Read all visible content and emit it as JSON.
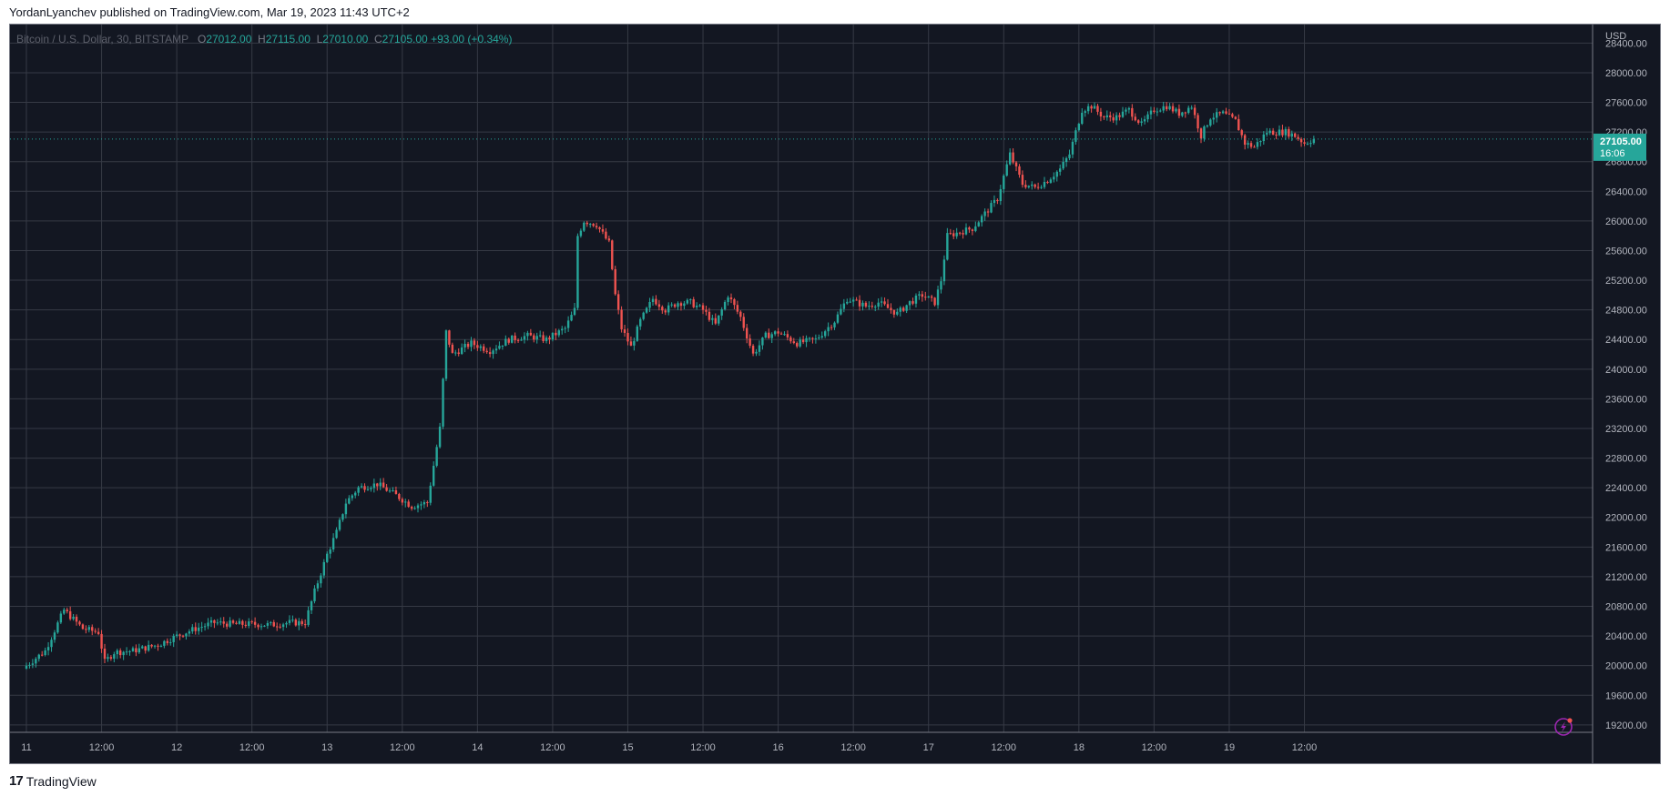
{
  "header": {
    "publisher_line": "YordanLyanchev published on TradingView.com, Mar 19, 2023 11:43 UTC+2"
  },
  "footer": {
    "brand": "TradingView",
    "logo_icon": "tradingview-logo-icon"
  },
  "colors": {
    "up": "#26a69a",
    "down": "#ef5350",
    "background": "#131722",
    "grid": "#363a45",
    "axis_text": "#b2b5be"
  },
  "chart_data": {
    "type": "candlestick",
    "symbol": "Bitcoin / U.S. Dollar, 30, BITSTAMP",
    "ohlc": {
      "o": "27012.00",
      "h": "27115.00",
      "l": "27010.00",
      "c": "27105.00",
      "change": "+93.00 (+0.34%)"
    },
    "y_unit": "USD",
    "ylim": [
      19100,
      28650
    ],
    "y_ticks": [
      19200,
      19600,
      20000,
      20400,
      20800,
      21200,
      21600,
      22000,
      22400,
      22800,
      23200,
      23600,
      24000,
      24400,
      24800,
      25200,
      25600,
      26000,
      26400,
      26800,
      27200,
      27600,
      28000,
      28400
    ],
    "x_ticks": [
      "11",
      "12:00",
      "12",
      "12:00",
      "13",
      "12:00",
      "14",
      "12:00",
      "15",
      "12:00",
      "16",
      "12:00",
      "17",
      "12:00",
      "18",
      "12:00",
      "19",
      "12:00"
    ],
    "x_ticks_bar_index": [
      0,
      24,
      48,
      72,
      96,
      120,
      144,
      168,
      192,
      216,
      240,
      264,
      288,
      312,
      336,
      360,
      384,
      408
    ],
    "last_price": {
      "value": 27105.0,
      "label": "27105.00",
      "countdown": "16:06"
    },
    "grid": true,
    "path_points": [
      [
        0,
        20000
      ],
      [
        6,
        20200
      ],
      [
        12,
        20750
      ],
      [
        18,
        20500
      ],
      [
        23,
        20450
      ],
      [
        25,
        20050
      ],
      [
        28,
        20180
      ],
      [
        34,
        20200
      ],
      [
        42,
        20280
      ],
      [
        48,
        20400
      ],
      [
        54,
        20500
      ],
      [
        60,
        20580
      ],
      [
        66,
        20560
      ],
      [
        72,
        20560
      ],
      [
        78,
        20550
      ],
      [
        84,
        20580
      ],
      [
        89,
        20580
      ],
      [
        92,
        21000
      ],
      [
        96,
        21500
      ],
      [
        99,
        21800
      ],
      [
        102,
        22200
      ],
      [
        106,
        22400
      ],
      [
        112,
        22450
      ],
      [
        118,
        22300
      ],
      [
        123,
        22150
      ],
      [
        128,
        22200
      ],
      [
        132,
        23200
      ],
      [
        134,
        24500
      ],
      [
        136,
        24200
      ],
      [
        142,
        24350
      ],
      [
        148,
        24250
      ],
      [
        154,
        24400
      ],
      [
        160,
        24450
      ],
      [
        166,
        24400
      ],
      [
        172,
        24550
      ],
      [
        175,
        24800
      ],
      [
        176,
        25800
      ],
      [
        178,
        26000
      ],
      [
        182,
        25950
      ],
      [
        186,
        25700
      ],
      [
        188,
        25000
      ],
      [
        190,
        24550
      ],
      [
        193,
        24300
      ],
      [
        196,
        24650
      ],
      [
        200,
        24950
      ],
      [
        204,
        24800
      ],
      [
        208,
        24900
      ],
      [
        212,
        24900
      ],
      [
        216,
        24800
      ],
      [
        220,
        24600
      ],
      [
        224,
        25000
      ],
      [
        228,
        24700
      ],
      [
        232,
        24200
      ],
      [
        236,
        24450
      ],
      [
        240,
        24500
      ],
      [
        246,
        24350
      ],
      [
        252,
        24400
      ],
      [
        258,
        24650
      ],
      [
        262,
        24950
      ],
      [
        268,
        24850
      ],
      [
        272,
        24900
      ],
      [
        278,
        24750
      ],
      [
        282,
        24900
      ],
      [
        286,
        25000
      ],
      [
        290,
        24900
      ],
      [
        292,
        25200
      ],
      [
        294,
        25800
      ],
      [
        298,
        25850
      ],
      [
        302,
        25900
      ],
      [
        306,
        26100
      ],
      [
        310,
        26300
      ],
      [
        314,
        26900
      ],
      [
        318,
        26500
      ],
      [
        322,
        26450
      ],
      [
        326,
        26550
      ],
      [
        330,
        26700
      ],
      [
        333,
        26900
      ],
      [
        335,
        27200
      ],
      [
        337,
        27500
      ],
      [
        340,
        27550
      ],
      [
        344,
        27400
      ],
      [
        348,
        27400
      ],
      [
        352,
        27500
      ],
      [
        356,
        27300
      ],
      [
        360,
        27500
      ],
      [
        364,
        27550
      ],
      [
        368,
        27450
      ],
      [
        372,
        27550
      ],
      [
        375,
        27150
      ],
      [
        378,
        27400
      ],
      [
        382,
        27450
      ],
      [
        386,
        27350
      ],
      [
        389,
        27050
      ],
      [
        392,
        27000
      ],
      [
        396,
        27200
      ],
      [
        402,
        27200
      ],
      [
        405,
        27150
      ],
      [
        408,
        27050
      ],
      [
        411,
        27105
      ]
    ]
  }
}
